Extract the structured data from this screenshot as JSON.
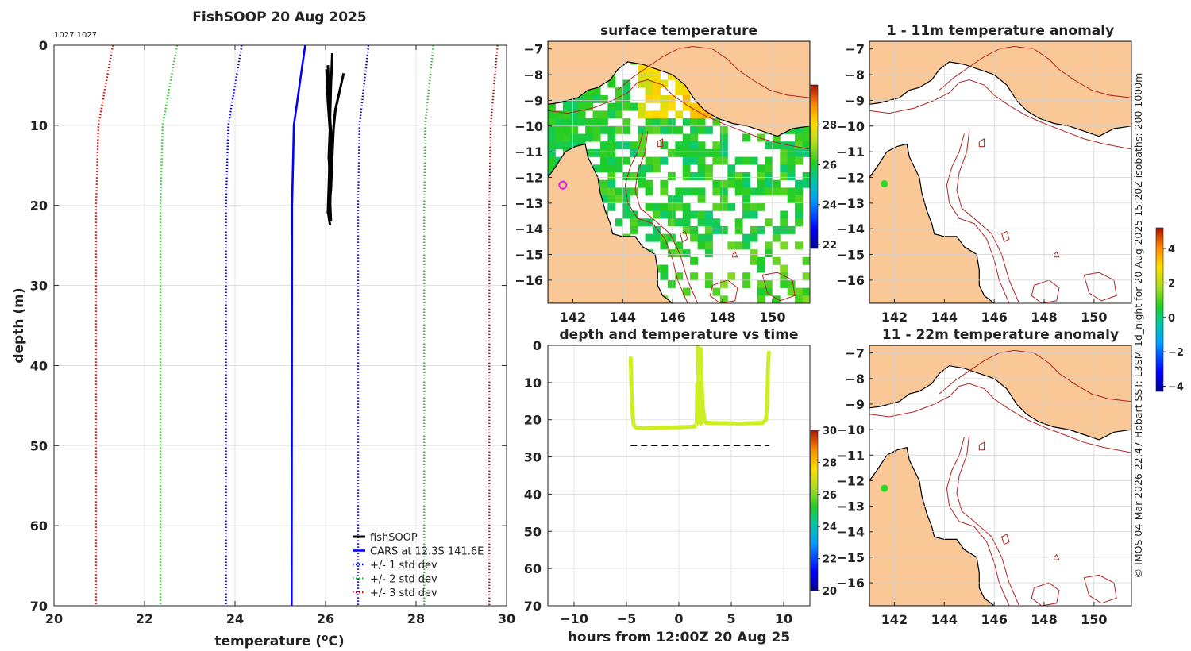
{
  "figure": {
    "title": "FishSOOP 20 Aug 2025",
    "id_label": "1027 1027",
    "side_note": "© IMOS 04-Mar-2026 22:47 Hobart SST: L3SM-1d_night for 20-Aug-2025 15:20Z isobaths: 200  1000m"
  },
  "colors": {
    "land": "#f9c896",
    "fish": "#000000",
    "cars": "#0000ff",
    "std1": "#0000ff",
    "std2": "#22cc22",
    "std3": "#e00000",
    "isobath": "#b22222",
    "marker_mag": "#dd22dd",
    "marker_green": "#22dd22",
    "series_pts": "#ccee22"
  },
  "chart_data": [
    {
      "type": "line",
      "panel": "profile",
      "title": "FishSOOP 20 Aug 2025",
      "xlabel": "temperature (oC)",
      "ylabel": "depth (m)",
      "xlim": [
        20,
        30
      ],
      "ylim": [
        0,
        70
      ],
      "xticks": [
        20,
        22,
        24,
        26,
        28,
        30
      ],
      "yticks": [
        0,
        10,
        20,
        30,
        40,
        50,
        60,
        70
      ],
      "grid": true,
      "legend": {
        "placement": "bottom-right",
        "entries": [
          "fishSOOP",
          "CARS at 12.3S 141.6E",
          "+/- 1 std dev",
          "+/- 2 std dev",
          "+/- 3 std dev"
        ]
      },
      "series": [
        {
          "name": "CARS at 12.3S 141.6E",
          "style": "solid",
          "color_key": "cars",
          "t": [
            25.55,
            25.45,
            25.35,
            25.3,
            25.28,
            25.26,
            25.25
          ],
          "d": [
            0,
            4,
            8,
            10,
            15,
            20,
            70
          ]
        },
        {
          "name": "+1 std dev",
          "style": "dotted",
          "color_key": "std1",
          "t": [
            26.95,
            26.75,
            26.72,
            26.72
          ],
          "d": [
            0,
            10,
            20,
            70
          ]
        },
        {
          "name": "-1 std dev",
          "style": "dotted",
          "color_key": "std1",
          "t": [
            24.15,
            23.85,
            23.8,
            23.8
          ],
          "d": [
            0,
            10,
            20,
            70
          ]
        },
        {
          "name": "+2 std dev",
          "style": "dotted",
          "color_key": "std2",
          "t": [
            28.38,
            28.2,
            28.18,
            28.18
          ],
          "d": [
            0,
            10,
            20,
            70
          ]
        },
        {
          "name": "-2 std dev",
          "style": "dotted",
          "color_key": "std2",
          "t": [
            22.72,
            22.4,
            22.35,
            22.35
          ],
          "d": [
            0,
            10,
            20,
            70
          ]
        },
        {
          "name": "+3 std dev",
          "style": "dotted",
          "color_key": "std3",
          "t": [
            29.8,
            29.65,
            29.62,
            29.62
          ],
          "d": [
            0,
            10,
            20,
            70
          ]
        },
        {
          "name": "-3 std dev",
          "style": "dotted",
          "color_key": "std3",
          "t": [
            21.3,
            20.98,
            20.93,
            20.93
          ],
          "d": [
            0,
            10,
            20,
            70
          ]
        },
        {
          "name": "fishSOOP cast 1",
          "style": "thick",
          "color_key": "fish",
          "t": [
            26.05,
            26.08,
            26.1,
            26.07,
            26.12,
            26.06,
            26.1
          ],
          "d": [
            2.5,
            6,
            10,
            14,
            18,
            21,
            22.5
          ]
        },
        {
          "name": "fishSOOP cast 2",
          "style": "thick",
          "color_key": "fish",
          "t": [
            26.15,
            26.12,
            26.1,
            26.14,
            26.08,
            26.12
          ],
          "d": [
            1,
            5,
            9,
            13,
            17,
            22
          ]
        },
        {
          "name": "fishSOOP cast 3",
          "style": "thick",
          "color_key": "fish",
          "t": [
            26.4,
            26.3,
            26.22,
            26.18,
            26.15,
            26.12
          ],
          "d": [
            3.5,
            6,
            8,
            10,
            14,
            18
          ]
        },
        {
          "name": "fishSOOP cast 4",
          "style": "thick",
          "color_key": "fish",
          "t": [
            26.02,
            26.05,
            26.1,
            26.08,
            26.05
          ],
          "d": [
            3,
            7,
            11,
            16,
            21
          ]
        },
        {
          "name": "fishSOOP cast 5",
          "style": "thick",
          "color_key": "fish",
          "t": [
            26.3,
            26.22,
            26.15,
            26.1
          ],
          "d": [
            6,
            8,
            12,
            20
          ]
        }
      ]
    },
    {
      "type": "heatmap",
      "panel": "sst_map",
      "title": "surface temperature",
      "xlim": [
        141,
        151.5
      ],
      "ylim": [
        -16.9,
        -6.7
      ],
      "xticks": [
        142,
        144,
        146,
        148,
        150
      ],
      "yticks": [
        -7,
        -8,
        -9,
        -10,
        -11,
        -12,
        -13,
        -14,
        -15,
        -16
      ],
      "colorbar": {
        "range": [
          21.8,
          30
        ],
        "ticks": [
          22,
          24,
          26,
          28
        ]
      },
      "marker": {
        "lon": 141.6,
        "lat": -12.3
      }
    },
    {
      "type": "scatter",
      "panel": "time_series",
      "title": "depth and temperature vs time",
      "xlabel": "hours from 12:00Z 20 Aug 25",
      "xlim": [
        -12.5,
        12.5
      ],
      "ylim": [
        0,
        70
      ],
      "xticks": [
        -10,
        -5,
        0,
        5,
        10
      ],
      "yticks": [
        0,
        10,
        20,
        30,
        40,
        50,
        60,
        70
      ],
      "colorbar": {
        "range": [
          20,
          30
        ],
        "ticks": [
          20,
          22,
          24,
          26,
          28,
          30
        ]
      },
      "bottom_line": {
        "x": [
          -4.6,
          8.6
        ],
        "depth": 27
      },
      "segments": [
        {
          "x": [
            -4.6,
            -4.55,
            -4.5,
            -4.4,
            -4.3,
            -4.0,
            -2.0,
            0.0,
            1.5,
            1.7,
            1.75
          ],
          "d": [
            3.5,
            8,
            14,
            19,
            21.5,
            22.3,
            22.1,
            22.0,
            21.8,
            21.0,
            10
          ]
        },
        {
          "x": [
            1.8,
            1.85,
            1.9,
            2.0,
            2.1,
            2.2
          ],
          "d": [
            0.5,
            6,
            12,
            18,
            21,
            20.5
          ]
        },
        {
          "x": [
            2.1,
            2.15,
            2.2,
            2.3,
            2.45,
            2.6
          ],
          "d": [
            1,
            7,
            12,
            17,
            20,
            20.8
          ]
        },
        {
          "x": [
            2.6,
            4.0,
            6.0,
            8.0,
            8.3,
            8.4,
            8.45,
            8.5,
            8.55,
            8.6
          ],
          "d": [
            20.8,
            20.9,
            21.0,
            20.8,
            20.0,
            17,
            12,
            7,
            3.5,
            1.5
          ]
        }
      ]
    },
    {
      "type": "heatmap",
      "panel": "anomaly_1_11",
      "title": "1 - 11m temperature anomaly",
      "xlim": [
        141,
        151.5
      ],
      "ylim": [
        -16.9,
        -6.7
      ],
      "xticks": [
        142,
        144,
        146,
        148,
        150
      ],
      "yticks": [
        -7,
        -8,
        -9,
        -10,
        -11,
        -12,
        -13,
        -14,
        -15,
        -16
      ],
      "colorbar": {
        "range": [
          -4.3,
          5.2
        ],
        "ticks": [
          -4,
          -2,
          0,
          2,
          4
        ]
      },
      "marker": {
        "lon": 141.6,
        "lat": -12.25
      }
    },
    {
      "type": "heatmap",
      "panel": "anomaly_11_22",
      "title": "11 - 22m temperature anomaly",
      "xlim": [
        141,
        151.5
      ],
      "ylim": [
        -16.9,
        -6.7
      ],
      "xticks": [
        142,
        144,
        146,
        148,
        150
      ],
      "yticks": [
        -7,
        -8,
        -9,
        -10,
        -11,
        -12,
        -13,
        -14,
        -15,
        -16
      ],
      "marker": {
        "lon": 141.6,
        "lat": -12.3
      }
    }
  ]
}
